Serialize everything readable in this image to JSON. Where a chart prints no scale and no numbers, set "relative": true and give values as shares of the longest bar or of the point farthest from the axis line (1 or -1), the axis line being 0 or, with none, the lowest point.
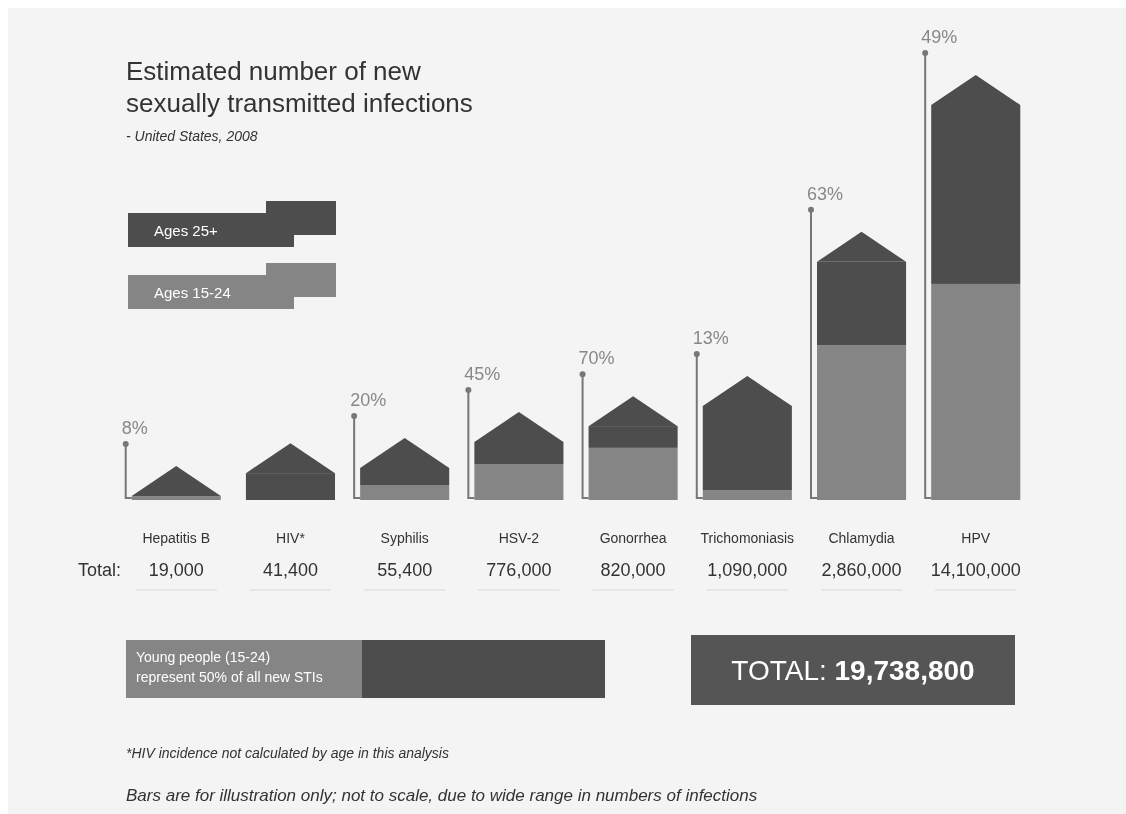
{
  "chart_data": {
    "type": "bar",
    "title": "Estimated number of new\nsexually transmitted infections",
    "subtitle": "- United States, 2008",
    "stacked": true,
    "relative": true,
    "legend": "top left",
    "categories": [
      "Hepatitis B",
      "HIV*",
      "Syphilis",
      "HSV-2",
      "Gonorrhea",
      "Trichomoniasis",
      "Chlamydia",
      "HPV"
    ],
    "series": [
      {
        "name": "Ages 15-24",
        "color": "#858585",
        "values": [
          0.01,
          null,
          0.038,
          0.091,
          0.132,
          0.025,
          0.392,
          0.547
        ]
      },
      {
        "name": "Ages 25+",
        "color": "#4d4d4d",
        "values": [
          null,
          0.068,
          0.043,
          0.056,
          0.055,
          0.213,
          0.211,
          0.453
        ]
      }
    ],
    "annotations": [
      "8%",
      "20%",
      "45%",
      "70%",
      "13%",
      "63%",
      "49%",
      "Total:",
      "19,000",
      "41,400",
      "55,400",
      "776,000",
      "820,000",
      "1,090,000",
      "2,860,000",
      "14,100,000",
      "Young people (15-24)\nrepresent 50% of all new STIs",
      "TOTAL: 19,738,800",
      "*HIV incidence not calculated by age in this analysis",
      "Bars are for illustration only; not to scale, due to wide range in numbers of infections"
    ]
  }
}
